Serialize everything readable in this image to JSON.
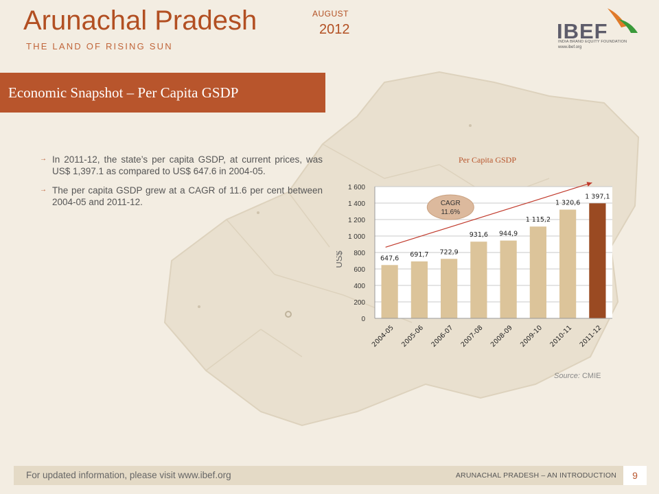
{
  "header": {
    "title": "Arunachal Pradesh",
    "subtitle": "THE LAND OF RISING SUN",
    "month": "AUGUST",
    "year": "2012",
    "logo": {
      "name": "IBEF",
      "tagline": "INDIA BRAND EQUITY FOUNDATION",
      "url": "www.ibef.org"
    }
  },
  "section": {
    "title": "Economic Snapshot – Per Capita GSDP"
  },
  "bullets": [
    "In 2011-12, the state’s per capita GSDP, at current prices, was US$ 1,397.1 as compared to US$ 647.6 in 2004-05.",
    "The per capita GSDP grew at a CAGR of 11.6 per cent between 2004-05 and 2011-12."
  ],
  "chart_data": {
    "type": "bar",
    "title": "Per Capita GSDP",
    "ylabel": "US$",
    "xlabel": "",
    "categories": [
      "2004-05",
      "2005-06",
      "2006-07",
      "2007-08",
      "2008-09",
      "2009-10",
      "2010-11",
      "2011-12"
    ],
    "values": [
      647.6,
      691.7,
      722.9,
      931.6,
      944.9,
      1115.2,
      1320.6,
      1397.1
    ],
    "data_labels": [
      "647,6",
      "691,7",
      "722,9",
      "931,6",
      "944,9",
      "1 115,2",
      "1 320,6",
      "1 397,1"
    ],
    "yticks": [
      0,
      200,
      400,
      600,
      800,
      1000,
      1200,
      1400,
      1600
    ],
    "ytick_labels": [
      "0",
      "200",
      "400",
      "600",
      "800",
      "1 000",
      "1 200",
      "1 400",
      "1 600"
    ],
    "ylim": [
      0,
      1600
    ],
    "grid": true,
    "colors": {
      "bar": "#dcc49a",
      "highlight": "#9a4a22",
      "trend": "#c0392b"
    },
    "annotation": {
      "label": "CAGR",
      "value": "11.6%"
    }
  },
  "source": {
    "label": "Source:",
    "value": "CMIE"
  },
  "footer": {
    "left": "For updated information, please visit www.ibef.org",
    "right": "ARUNACHAL PRADESH – AN INTRODUCTION",
    "page": "9"
  }
}
